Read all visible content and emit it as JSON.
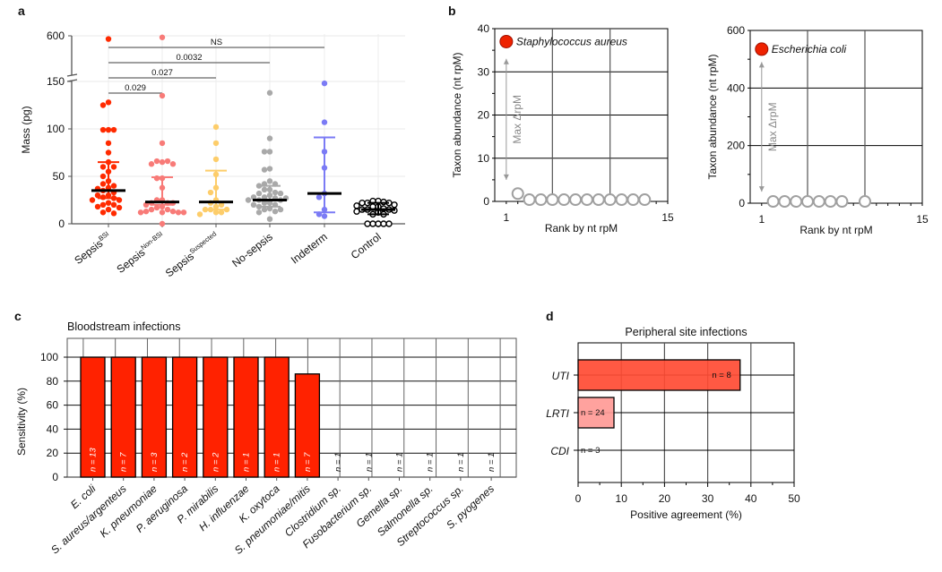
{
  "panels": {
    "a": {
      "label": "a"
    },
    "b": {
      "label": "b"
    },
    "c": {
      "label": "c"
    },
    "d": {
      "label": "d"
    }
  },
  "chart_data": [
    {
      "id": "a",
      "type": "scatter",
      "title": "",
      "xlabel": "",
      "ylabel": "Mass (pg)",
      "ylim": [
        0,
        600
      ],
      "axis_break": [
        150,
        600
      ],
      "yticks": [
        "0",
        "50",
        "100",
        "150",
        "600"
      ],
      "grid": true,
      "categories": [
        {
          "name": "Sepsis",
          "sup": "BSI",
          "color": "#ff2a00",
          "filled": true,
          "median": 35,
          "err_low": 27,
          "err_high": 65,
          "values": [
            560,
            128,
            125,
            99,
            99,
            99,
            85,
            75,
            65,
            60,
            60,
            55,
            50,
            45,
            42,
            40,
            38,
            37,
            35,
            33,
            30,
            30,
            28,
            27,
            25,
            25,
            22,
            20,
            20,
            18,
            17,
            15,
            12,
            11
          ]
        },
        {
          "name": "Sepsis",
          "sup": "Non-BSI",
          "color": "#f87b78",
          "filled": true,
          "median": 23,
          "err_low": 20,
          "err_high": 49,
          "values": [
            580,
            135,
            85,
            65,
            66,
            66,
            63,
            63,
            48,
            48,
            38,
            25,
            25,
            22,
            22,
            22,
            20,
            18,
            17,
            15,
            15,
            13,
            13,
            12,
            12,
            12,
            12,
            0
          ]
        },
        {
          "name": "Sepsis",
          "sup": "Suspected",
          "color": "#fdcd6a",
          "filled": true,
          "median": 23,
          "err_low": 15,
          "err_high": 56,
          "values": [
            102,
            85,
            68,
            52,
            38,
            33,
            25,
            22,
            20,
            18,
            15,
            15,
            15,
            12,
            12,
            10
          ]
        },
        {
          "name": "No-sepsis",
          "sup": "",
          "color": "#a9a9a9",
          "filled": true,
          "median": 25,
          "err_low": 18,
          "err_high": 40,
          "values": [
            138,
            90,
            76,
            76,
            58,
            57,
            45,
            42,
            42,
            40,
            36,
            36,
            33,
            32,
            32,
            30,
            28,
            28,
            27,
            27,
            25,
            25,
            25,
            22,
            22,
            20,
            20,
            18,
            16,
            15,
            15,
            13,
            12,
            5
          ]
        },
        {
          "name": "Indeterm",
          "sup": "",
          "color": "#7b7bf5",
          "filled": true,
          "median": 32,
          "err_low": 12,
          "err_high": 91,
          "values": [
            148,
            107,
            76,
            59,
            32,
            28,
            15,
            10,
            8
          ]
        },
        {
          "name": "Control",
          "sup": "",
          "color": "#000000",
          "filled": false,
          "median": 15,
          "err_low": 10,
          "err_high": 22,
          "values": [
            24,
            24,
            23,
            22,
            22,
            22,
            20,
            19,
            18,
            18,
            16,
            15,
            15,
            15,
            14,
            13,
            12,
            10,
            10,
            0,
            0,
            0,
            0,
            0
          ]
        }
      ],
      "comparisons": [
        {
          "from": 0,
          "to": 4,
          "label": "NS"
        },
        {
          "from": 0,
          "to": 3,
          "label": "0.0032"
        },
        {
          "from": 0,
          "to": 2,
          "label": "0.027"
        },
        {
          "from": 0,
          "to": 1,
          "label": "0.029"
        }
      ]
    },
    {
      "id": "b-left",
      "type": "scatter",
      "xlabel": "Rank by nt rpM",
      "ylabel": "Taxon abundance (nt rpM)",
      "xlim": [
        0,
        15
      ],
      "xtick_labels": [
        "1",
        "15"
      ],
      "ylim": [
        0,
        40
      ],
      "yticks": [
        "0",
        "10",
        "20",
        "30",
        "40"
      ],
      "top_taxon": {
        "name": "Staphylococcus aureus",
        "rank": 1,
        "value": 37
      },
      "others": {
        "ranks": [
          2,
          3,
          4,
          5,
          6,
          7,
          8,
          9,
          10,
          11,
          12,
          13
        ],
        "values": [
          1.6,
          0.2,
          0.2,
          0.2,
          0.2,
          0.2,
          0.2,
          0.2,
          0.2,
          0.2,
          0.2,
          0.2
        ]
      },
      "arrow_label": "Max ΔrpM",
      "arrow_range": [
        5,
        33
      ],
      "top_color": "#ee2200",
      "other_color": "#a0a0a0"
    },
    {
      "id": "b-right",
      "type": "scatter",
      "xlabel": "Rank by nt rpM",
      "ylabel": "Taxon abundance (nt rpM)",
      "xlim": [
        0,
        15
      ],
      "xtick_labels": [
        "1",
        "15"
      ],
      "ylim": [
        0,
        600
      ],
      "yticks": [
        "0",
        "200",
        "400",
        "600"
      ],
      "top_taxon": {
        "name": "Escherichia coli",
        "rank": 1,
        "value": 535
      },
      "others": {
        "ranks": [
          2,
          3,
          4,
          5,
          6,
          7,
          8,
          10
        ],
        "values": [
          3,
          3,
          3,
          3,
          3,
          3,
          3,
          3
        ]
      },
      "arrow_label": "Max ΔrpM",
      "arrow_range": [
        40,
        490
      ],
      "top_color": "#ee2200",
      "other_color": "#a0a0a0"
    },
    {
      "id": "c",
      "type": "bar",
      "title": "Bloodstream infections",
      "xlabel": "",
      "ylabel": "Sensitivity (%)",
      "ylim": [
        0,
        115
      ],
      "yticks": [
        "0",
        "20",
        "40",
        "60",
        "80",
        "100"
      ],
      "grid": true,
      "categories": [
        "E. coli",
        "S. aureus/argenteus",
        "K. pneumoniae",
        "P. aeruginosa",
        "P. mirabilis",
        "H. influenzae",
        "K. oxytoca",
        "S. pneumoniae/mitis",
        "Clostridium sp.",
        "Fusobacterium sp.",
        "Gemella sp.",
        "Salmonella sp.",
        "Streptococcus sp.",
        "S. pyogenes"
      ],
      "values": [
        100,
        100,
        100,
        100,
        100,
        100,
        100,
        86,
        0,
        0,
        0,
        0,
        0,
        0
      ],
      "n_labels": [
        "n = 13",
        "n = 7",
        "n = 3",
        "n = 2",
        "n = 2",
        "n = 1",
        "n = 1",
        "n = 7",
        "n = 1",
        "n = 1",
        "n = 1",
        "n = 1",
        "n = 1",
        "n = 1"
      ],
      "bar_color": "#ff2200"
    },
    {
      "id": "d",
      "type": "bar",
      "orientation": "horizontal",
      "title": "Peripheral site infections",
      "xlabel": "Positive agreement (%)",
      "ylabel": "",
      "xlim": [
        0,
        50
      ],
      "xticks": [
        "0",
        "10",
        "20",
        "30",
        "40",
        "50"
      ],
      "categories": [
        "UTI",
        "LRTI",
        "CDI"
      ],
      "values": [
        37.5,
        8.3,
        0
      ],
      "n_labels": [
        "n = 8",
        "n = 24",
        "n = 3"
      ],
      "colors": [
        "#ff4b33",
        "#ff9a96",
        "#ffffff"
      ]
    }
  ]
}
